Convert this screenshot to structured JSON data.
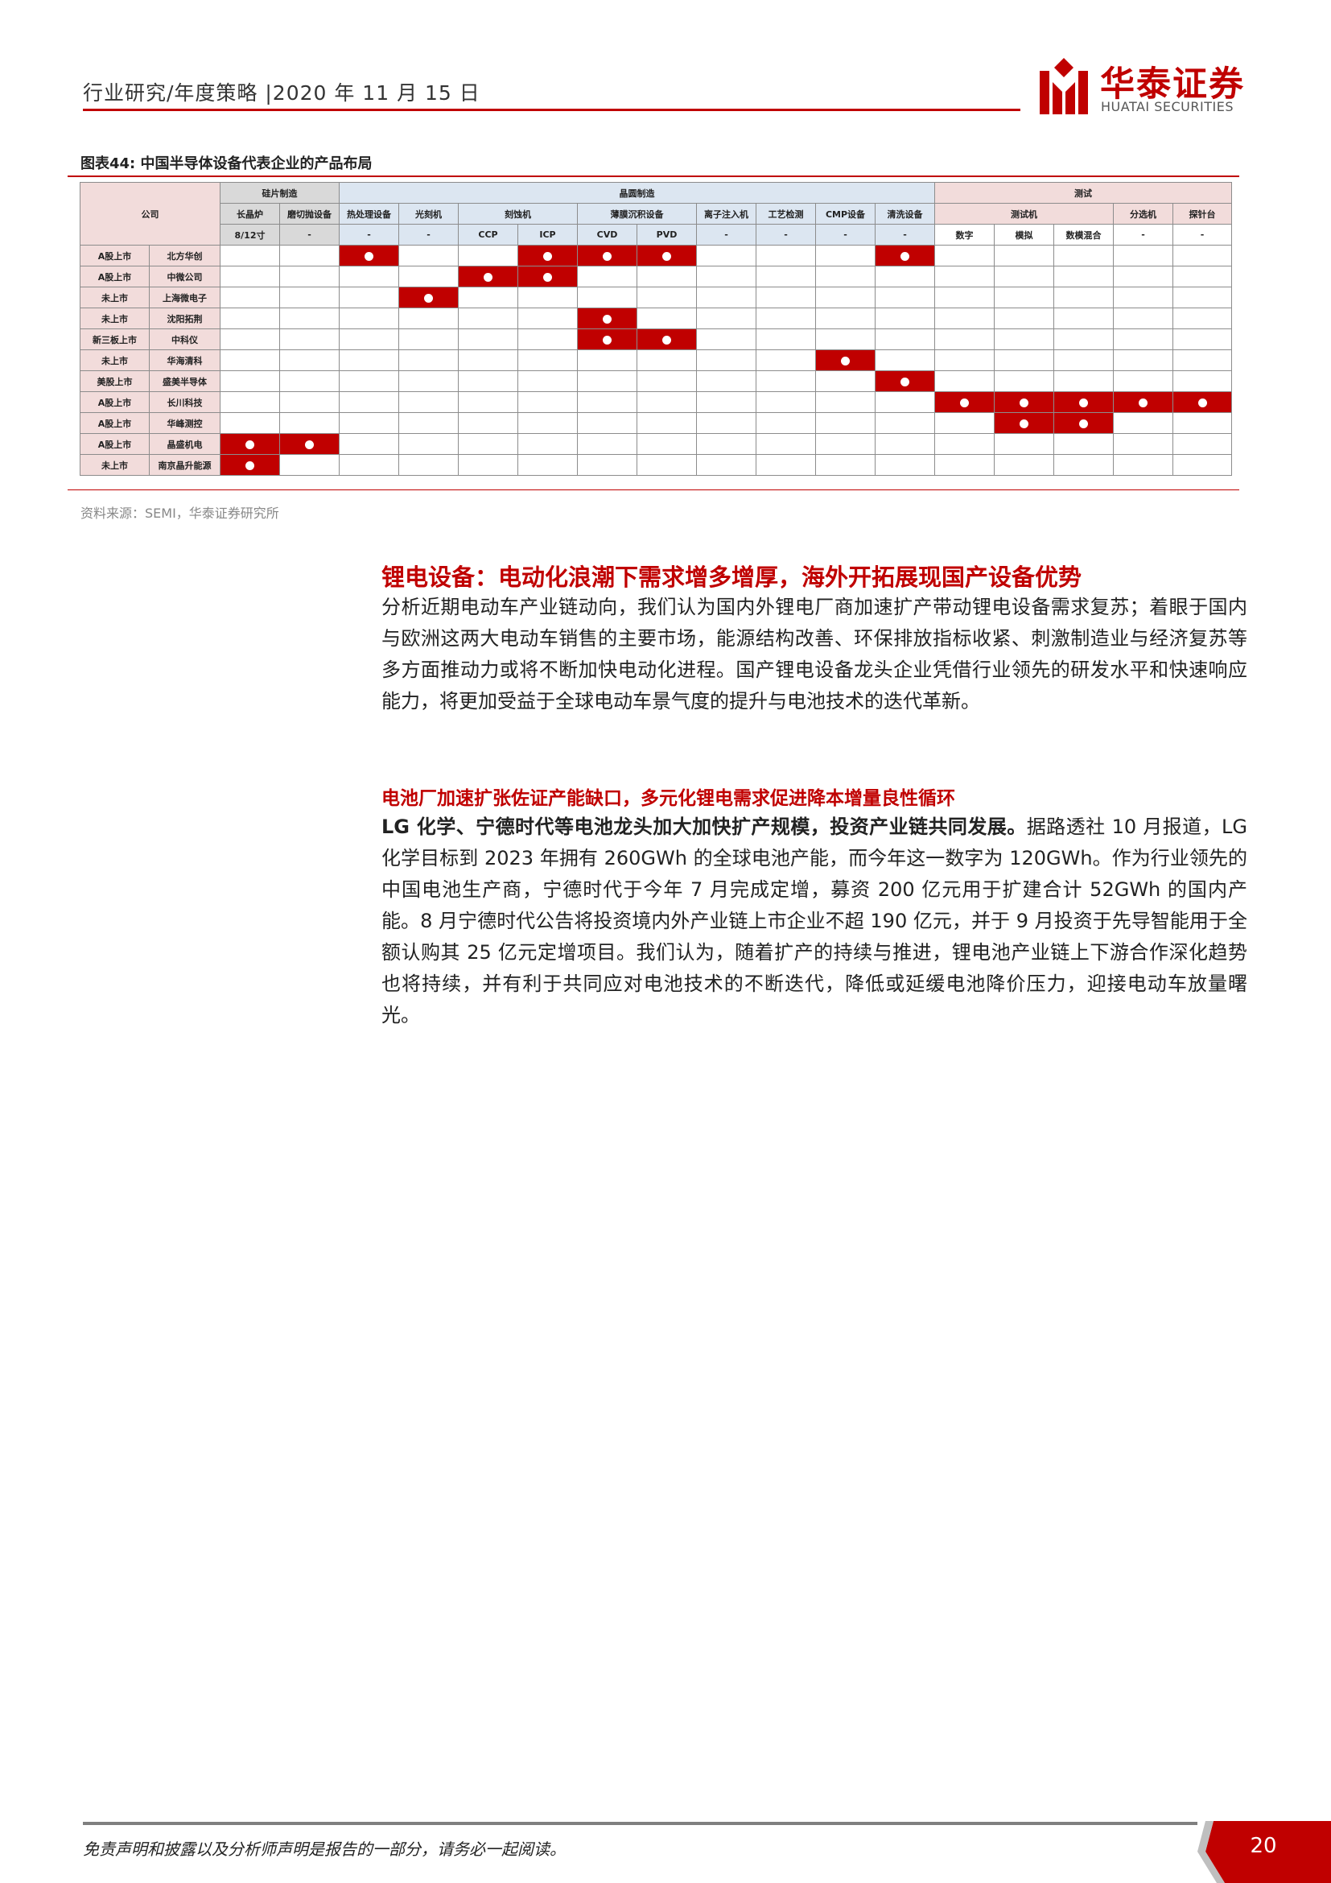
{
  "header": {
    "text": "行业研究/年度策略 |2020 年 11 月 15 日",
    "logo_cn": "华泰证券",
    "logo_en": "HUATAI SECURITIES"
  },
  "figure": {
    "title": "图表44:   中国半导体设备代表企业的产品布局",
    "source": "资料来源：SEMI，华泰证券研究所",
    "table": {
      "company_header": "公司",
      "groups": [
        "硅片制造",
        "晶圆制造",
        "测试"
      ],
      "equipment": [
        "长晶炉",
        "磨切抛设备",
        "热处理设备",
        "光刻机",
        "刻蚀机",
        "薄膜沉积设备",
        "离子注入机",
        "工艺检测",
        "CMP设备",
        "清洗设备",
        "测试机",
        "分选机",
        "探针台"
      ],
      "subtypes": [
        "8/12寸",
        "-",
        "-",
        "-",
        "CCP",
        "ICP",
        "CVD",
        "PVD",
        "-",
        "-",
        "-",
        "-",
        "数字",
        "模拟",
        "数模混合",
        "-",
        "-"
      ],
      "rows": [
        {
          "status": "A股上市",
          "company": "北方华创",
          "marks": [
            0,
            0,
            1,
            0,
            0,
            1,
            1,
            1,
            0,
            0,
            0,
            1,
            0,
            0,
            0,
            0,
            0
          ]
        },
        {
          "status": "A股上市",
          "company": "中微公司",
          "marks": [
            0,
            0,
            0,
            0,
            1,
            1,
            0,
            0,
            0,
            0,
            0,
            0,
            0,
            0,
            0,
            0,
            0
          ]
        },
        {
          "status": "未上市",
          "company": "上海微电子",
          "marks": [
            0,
            0,
            0,
            1,
            0,
            0,
            0,
            0,
            0,
            0,
            0,
            0,
            0,
            0,
            0,
            0,
            0
          ]
        },
        {
          "status": "未上市",
          "company": "沈阳拓荆",
          "marks": [
            0,
            0,
            0,
            0,
            0,
            0,
            1,
            0,
            0,
            0,
            0,
            0,
            0,
            0,
            0,
            0,
            0
          ]
        },
        {
          "status": "新三板上市",
          "company": "中科仪",
          "marks": [
            0,
            0,
            0,
            0,
            0,
            0,
            1,
            1,
            0,
            0,
            0,
            0,
            0,
            0,
            0,
            0,
            0
          ]
        },
        {
          "status": "未上市",
          "company": "华海清科",
          "marks": [
            0,
            0,
            0,
            0,
            0,
            0,
            0,
            0,
            0,
            0,
            1,
            0,
            0,
            0,
            0,
            0,
            0
          ]
        },
        {
          "status": "美股上市",
          "company": "盛美半导体",
          "marks": [
            0,
            0,
            0,
            0,
            0,
            0,
            0,
            0,
            0,
            0,
            0,
            1,
            0,
            0,
            0,
            0,
            0
          ]
        },
        {
          "status": "A股上市",
          "company": "长川科技",
          "marks": [
            0,
            0,
            0,
            0,
            0,
            0,
            0,
            0,
            0,
            0,
            0,
            0,
            1,
            1,
            1,
            1,
            1
          ]
        },
        {
          "status": "A股上市",
          "company": "华峰测控",
          "marks": [
            0,
            0,
            0,
            0,
            0,
            0,
            0,
            0,
            0,
            0,
            0,
            0,
            0,
            1,
            1,
            0,
            0
          ]
        },
        {
          "status": "A股上市",
          "company": "晶盛机电",
          "marks": [
            1,
            1,
            0,
            0,
            0,
            0,
            0,
            0,
            0,
            0,
            0,
            0,
            0,
            0,
            0,
            0,
            0
          ]
        },
        {
          "status": "未上市",
          "company": "南京晶升能源",
          "marks": [
            1,
            0,
            0,
            0,
            0,
            0,
            0,
            0,
            0,
            0,
            0,
            0,
            0,
            0,
            0,
            0,
            0
          ]
        }
      ]
    }
  },
  "section": {
    "title": "锂电设备：电动化浪潮下需求增多增厚，海外开拓展现国产设备优势",
    "para1": "分析近期电动车产业链动向，我们认为国内外锂电厂商加速扩产带动锂电设备需求复苏；着眼于国内与欧洲这两大电动车销售的主要市场，能源结构改善、环保排放指标收紧、刺激制造业与经济复苏等多方面推动力或将不断加快电动化进程。国产锂电设备龙头企业凭借行业领先的研发水平和快速响应能力，将更加受益于全球电动车景气度的提升与电池技术的迭代革新。",
    "subtitle": "电池厂加速扩张佐证产能缺口，多元化锂电需求促进降本增量良性循环",
    "para2_lead": "LG 化学、宁德时代等电池龙头加大加快扩产规模，投资产业链共同发展。",
    "para2_body": "据路透社 10 月报道，LG 化学目标到 2023 年拥有 260GWh 的全球电池产能，而今年这一数字为 120GWh。作为行业领先的中国电池生产商，宁德时代于今年 7 月完成定增，募资 200 亿元用于扩建合计 52GWh 的国内产能。8 月宁德时代公告将投资境内外产业链上市企业不超 190 亿元，并于 9 月投资于先导智能用于全额认购其 25 亿元定增项目。我们认为，随着扩产的持续与推进，锂电池产业链上下游合作深化趋势也将持续，并有利于共同应对电池技术的不断迭代，降低或延缓电池降价压力，迎接电动车放量曙光。"
  },
  "footer": {
    "disclaimer": "免责声明和披露以及分析师声明是报告的一部分，请务必一起阅读。",
    "page": "20"
  },
  "colors": {
    "accent": "#c00000",
    "pink": "#f2dcdb",
    "blue": "#dce6f1",
    "gray": "#d9d9d9"
  }
}
